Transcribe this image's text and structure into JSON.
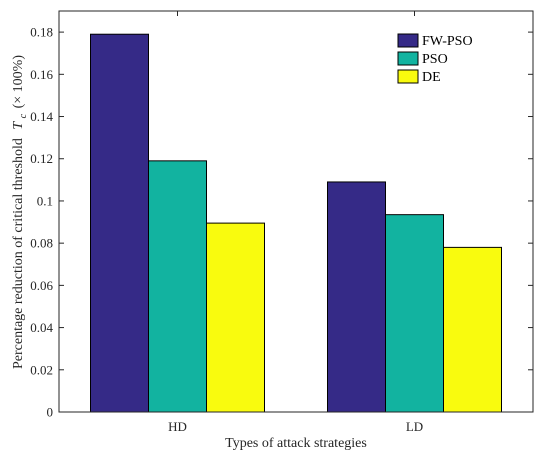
{
  "chart_data": {
    "type": "bar",
    "categories": [
      "HD",
      "LD"
    ],
    "series": [
      {
        "name": "FW-PSO",
        "values": [
          0.179,
          0.109
        ],
        "color": "#352a87"
      },
      {
        "name": "PSO",
        "values": [
          0.119,
          0.0935
        ],
        "color": "#12b3a0"
      },
      {
        "name": "DE",
        "values": [
          0.0895,
          0.078
        ],
        "color": "#f9fb0e"
      }
    ],
    "xlabel": "Types of attack strategies",
    "ylabel": {
      "main": "Percentage reduction of critical threshold",
      "symbol": "T",
      "subscript": "c",
      "unit": "(× 100%)"
    },
    "ylim": [
      0,
      0.19
    ],
    "yticks": [
      "0",
      "0.02",
      "0.04",
      "0.06",
      "0.08",
      "0.1",
      "0.12",
      "0.14",
      "0.16",
      "0.18"
    ],
    "grid": false,
    "legend_position": "top-right"
  }
}
